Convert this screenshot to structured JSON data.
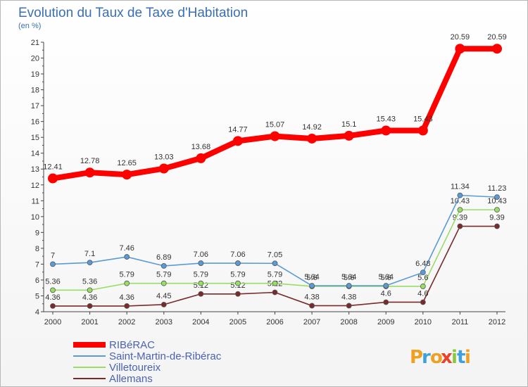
{
  "chart_data": {
    "type": "line",
    "title": "Evolution du Taux de Taxe d'Habitation",
    "subtitle": "(en %)",
    "x": [
      "2000",
      "2001",
      "2002",
      "2003",
      "2004",
      "2005",
      "2006",
      "2007",
      "2008",
      "2009",
      "2010",
      "2011",
      "2012"
    ],
    "ylim": [
      4,
      21
    ],
    "yticks": [
      "4",
      "5",
      "6",
      "7",
      "8",
      "9",
      "10",
      "11",
      "12",
      "13",
      "14",
      "15",
      "16",
      "17",
      "18",
      "19",
      "20",
      "21"
    ],
    "grid": false,
    "legend_position": "bottom-left",
    "series": [
      {
        "name": "RIBéRAC",
        "color": "#ff0000",
        "values": [
          12.41,
          12.78,
          12.65,
          13.03,
          13.68,
          14.77,
          15.07,
          14.92,
          15.1,
          15.43,
          15.43,
          20.59,
          20.59
        ],
        "labels": [
          "12.41",
          "12.78",
          "12.65",
          "13.03",
          "13.68",
          "14.77",
          "15.07",
          "14.92",
          "15.1",
          "15.43",
          "15.43",
          "20.59",
          "20.59"
        ]
      },
      {
        "name": "Saint-Martin-de-Ribérac",
        "color": "#5b9bd5",
        "values": [
          7,
          7.1,
          7.46,
          6.89,
          7.06,
          7.06,
          7.05,
          5.64,
          5.64,
          5.64,
          6.48,
          11.34,
          11.23
        ],
        "labels": [
          "7",
          "7.1",
          "7.46",
          "6.89",
          "7.06",
          "7.06",
          "7.05",
          "5.64",
          "5.64",
          "5.64",
          "6.48",
          "11.34",
          "11.23"
        ]
      },
      {
        "name": "Villetoureix",
        "color": "#99dd66",
        "values": [
          5.36,
          5.36,
          5.79,
          5.79,
          5.79,
          5.79,
          5.79,
          5.6,
          5.6,
          5.6,
          5.6,
          10.43,
          10.43
        ],
        "labels": [
          "5.36",
          "5.36",
          "5.79",
          "5.79",
          "5.79",
          "5.79",
          "5.79",
          "5.6",
          "5.6",
          "5.6",
          "5.6",
          "10.43",
          "10.43"
        ]
      },
      {
        "name": "Allemans",
        "color": "#7a2a2a",
        "values": [
          4.36,
          4.36,
          4.36,
          4.45,
          5.12,
          5.12,
          5.22,
          4.38,
          4.38,
          4.6,
          4.6,
          9.39,
          9.39
        ],
        "labels": [
          "4.36",
          "4.36",
          "4.36",
          "4.45",
          "5.12",
          "5.12",
          "5.22",
          "4.38",
          "4.38",
          "4.6",
          "4.6",
          "9.39",
          "9.39"
        ]
      }
    ]
  },
  "brand": {
    "letters": [
      "P",
      "r",
      "o",
      "x",
      "i",
      "t",
      "i"
    ],
    "colors": [
      "#f0a020",
      "#3fa1d9",
      "#f0a020",
      "#e8412c",
      "#8cc63f",
      "#3fa1d9",
      "#f0a020"
    ]
  }
}
